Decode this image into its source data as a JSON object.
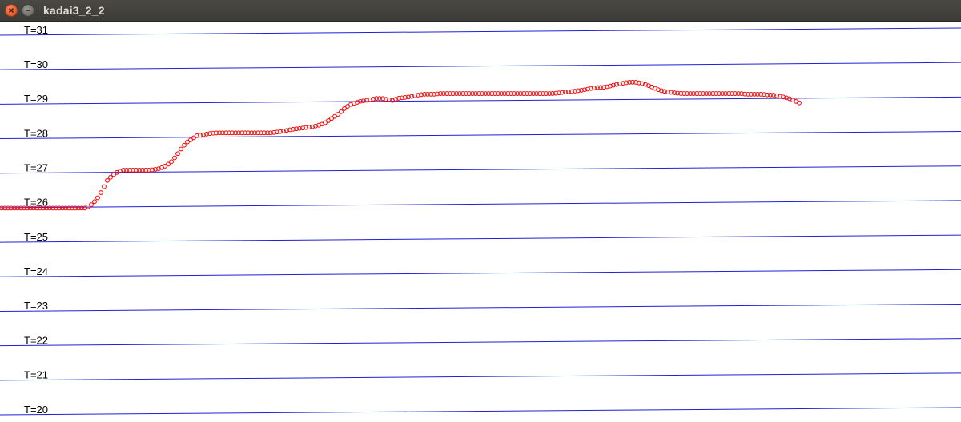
{
  "window": {
    "title": "kadai3_2_2",
    "close_icon": "close-icon",
    "minimize_icon": "minimize-icon"
  },
  "colors": {
    "titlebar": "#3c3b37",
    "line": "#1f1fd8",
    "marker": "#ff0000",
    "background": "#ffffff"
  },
  "chart_data": {
    "type": "scatter",
    "title": "",
    "xlabel": "",
    "ylabel": "",
    "ylim": [
      20,
      31
    ],
    "grid": true,
    "level_labels": [
      "T=31",
      "T=30",
      "T=29",
      "T=28",
      "T=27",
      "T=26",
      "T=25",
      "T=24",
      "T=23",
      "T=22",
      "T=21",
      "T=20"
    ],
    "levels": [
      31,
      30,
      29,
      28,
      27,
      26,
      25,
      24,
      23,
      22,
      21,
      20
    ],
    "series": [
      {
        "values": [
          26.0,
          26.0,
          26.0,
          26.0,
          26.0,
          26.0,
          26.0,
          26.0,
          26.0,
          26.0,
          26.0,
          26.0,
          26.0,
          26.0,
          26.0,
          26.0,
          26.0,
          26.1,
          26.25,
          26.5,
          26.8,
          26.95,
          27.05,
          27.1,
          27.1,
          27.1,
          27.1,
          27.1,
          27.1,
          27.12,
          27.15,
          27.22,
          27.32,
          27.5,
          27.72,
          27.9,
          28.0,
          28.1,
          28.12,
          28.15,
          28.17,
          28.18,
          28.18,
          28.18,
          28.18,
          28.18,
          28.18,
          28.18,
          28.18,
          28.18,
          28.18,
          28.18,
          28.2,
          28.22,
          28.25,
          28.28,
          28.3,
          28.32,
          28.34,
          28.36,
          28.4,
          28.45,
          28.55,
          28.65,
          28.75,
          28.9,
          29.0,
          29.05,
          29.1,
          29.12,
          29.15,
          29.18,
          29.18,
          29.15,
          29.12,
          29.18,
          29.2,
          29.22,
          29.25,
          29.28,
          29.3,
          29.3,
          29.3,
          29.32,
          29.32,
          29.32,
          29.32,
          29.32,
          29.32,
          29.32,
          29.32,
          29.32,
          29.32,
          29.32,
          29.32,
          29.32,
          29.32,
          29.32,
          29.32,
          29.32,
          29.32,
          29.32,
          29.32,
          29.32,
          29.32,
          29.33,
          29.35,
          29.37,
          29.38,
          29.4,
          29.42,
          29.45,
          29.48,
          29.5,
          29.5,
          29.53,
          29.57,
          29.6,
          29.63,
          29.65,
          29.65,
          29.62,
          29.58,
          29.52,
          29.45,
          29.4,
          29.37,
          29.35,
          29.33,
          29.32,
          29.32,
          29.32,
          29.32,
          29.32,
          29.32,
          29.32,
          29.32,
          29.32,
          29.32,
          29.32,
          29.32,
          29.3,
          29.3,
          29.3,
          29.3,
          29.28,
          29.28,
          29.25,
          29.22,
          29.18,
          29.12,
          29.05
        ]
      }
    ]
  }
}
